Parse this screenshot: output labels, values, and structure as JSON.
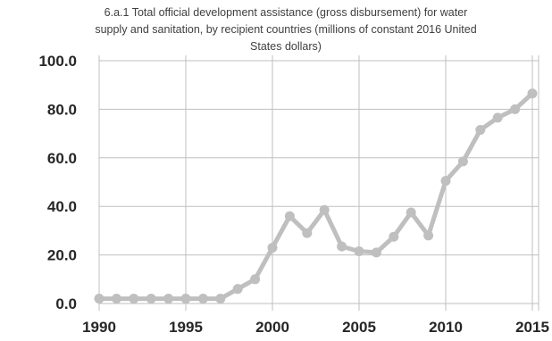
{
  "chart_data": {
    "type": "line",
    "title_lines": [
      "6.a.1 Total official development assistance (gross disbursement) for water",
      "supply and sanitation, by recipient countries (millions of constant 2016 United",
      "States dollars)"
    ],
    "xlabel": "",
    "ylabel": "",
    "xlim": [
      1990,
      2015
    ],
    "ylim": [
      0,
      100
    ],
    "x_ticks": [
      "1990",
      "1995",
      "2000",
      "2005",
      "2010",
      "2015"
    ],
    "y_ticks": [
      "0.0",
      "20.0",
      "40.0",
      "60.0",
      "80.0",
      "100.0"
    ],
    "grid": true,
    "legend": "none",
    "series_color": "#bfbfbf",
    "series": [
      {
        "x": [
          1990,
          1991,
          1992,
          1993,
          1994,
          1995,
          1996,
          1997,
          1998,
          1999,
          2000,
          2001,
          2002,
          2003,
          2004,
          2005,
          2006,
          2007,
          2008,
          2009,
          2010,
          2011,
          2012,
          2013,
          2014,
          2015
        ],
        "values": [
          2,
          2,
          2,
          2,
          2,
          2,
          2,
          2,
          6,
          10,
          23,
          36,
          29,
          38.5,
          23.5,
          21.5,
          21,
          27.5,
          37.5,
          28,
          50.5,
          58.5,
          71.5,
          76.5,
          80,
          86.5
        ]
      }
    ]
  }
}
